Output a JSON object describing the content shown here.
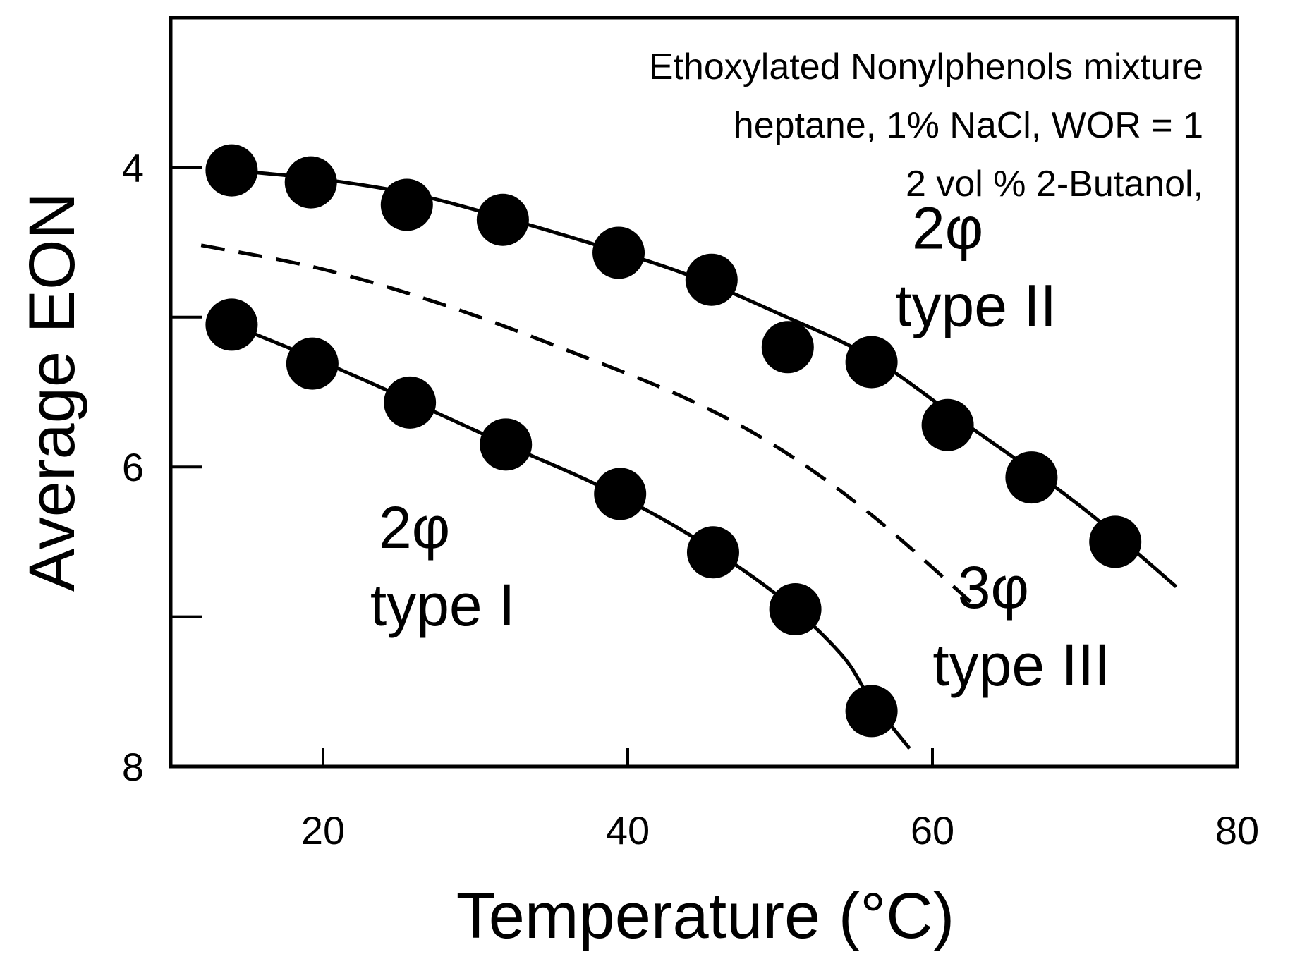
{
  "chart_data": {
    "type": "scatter",
    "title": "",
    "annotation_lines": [
      "Ethoxylated Nonylphenols mixture",
      "heptane, 1% NaCl, WOR = 1",
      "2 vol % 2-Butanol,"
    ],
    "xlabel": "Temperature (°C)",
    "ylabel": "Average EON",
    "xlim": [
      10,
      80
    ],
    "ylim": [
      8,
      3
    ],
    "y_inverted": true,
    "grid": false,
    "legend": "none",
    "x_ticks": [
      20,
      40,
      60,
      80
    ],
    "x_tick_labels": [
      "20",
      "40",
      "60",
      "80"
    ],
    "y_ticks": [
      4,
      6,
      8
    ],
    "y_tick_labels": [
      "4",
      "6",
      "8"
    ],
    "y_minor_ticks": [
      5,
      7
    ],
    "colors": {
      "marker": "#000000",
      "line": "#000000",
      "background": "#ffffff"
    },
    "series": [
      {
        "role": "upper-boundary",
        "style": "solid-line-with-markers",
        "points": [
          [
            14,
            4.02
          ],
          [
            19.2,
            4.1
          ],
          [
            25.5,
            4.25
          ],
          [
            31.8,
            4.35
          ],
          [
            39.4,
            4.57
          ],
          [
            45.5,
            4.75
          ],
          [
            50.5,
            5.2
          ],
          [
            56,
            5.3
          ],
          [
            61,
            5.72
          ],
          [
            66.5,
            6.07
          ],
          [
            72,
            6.5
          ]
        ],
        "curve": [
          [
            14,
            4.02
          ],
          [
            20,
            4.08
          ],
          [
            26,
            4.18
          ],
          [
            32,
            4.34
          ],
          [
            38,
            4.52
          ],
          [
            44,
            4.72
          ],
          [
            50,
            4.98
          ],
          [
            56,
            5.27
          ],
          [
            62,
            5.7
          ],
          [
            68,
            6.13
          ],
          [
            72,
            6.45
          ],
          [
            76,
            6.8
          ]
        ]
      },
      {
        "role": "lower-boundary",
        "style": "solid-line-with-markers",
        "points": [
          [
            14,
            5.05
          ],
          [
            19.3,
            5.31
          ],
          [
            25.7,
            5.57
          ],
          [
            32,
            5.85
          ],
          [
            39.5,
            6.18
          ],
          [
            45.6,
            6.57
          ],
          [
            51,
            6.95
          ],
          [
            56,
            7.63
          ]
        ],
        "curve": [
          [
            14,
            5.05
          ],
          [
            20,
            5.3
          ],
          [
            26,
            5.57
          ],
          [
            32,
            5.85
          ],
          [
            38,
            6.12
          ],
          [
            44,
            6.45
          ],
          [
            50,
            6.87
          ],
          [
            54,
            7.25
          ],
          [
            56,
            7.56
          ],
          [
            58.5,
            7.88
          ]
        ]
      },
      {
        "role": "middle-estimate",
        "style": "dashed-line",
        "curve": [
          [
            12,
            4.52
          ],
          [
            20,
            4.68
          ],
          [
            28,
            4.92
          ],
          [
            36,
            5.22
          ],
          [
            44,
            5.55
          ],
          [
            50,
            5.88
          ],
          [
            56,
            6.32
          ],
          [
            62.5,
            6.9
          ]
        ]
      }
    ],
    "region_labels": [
      {
        "line1": "2φ",
        "line2": "type II",
        "x": 61,
        "y": 4.8
      },
      {
        "line1": "2φ",
        "line2": "type I",
        "x": 26,
        "y": 6.8
      },
      {
        "line1": "3φ",
        "line2": "type III",
        "x": 64,
        "y": 7.2
      }
    ]
  }
}
